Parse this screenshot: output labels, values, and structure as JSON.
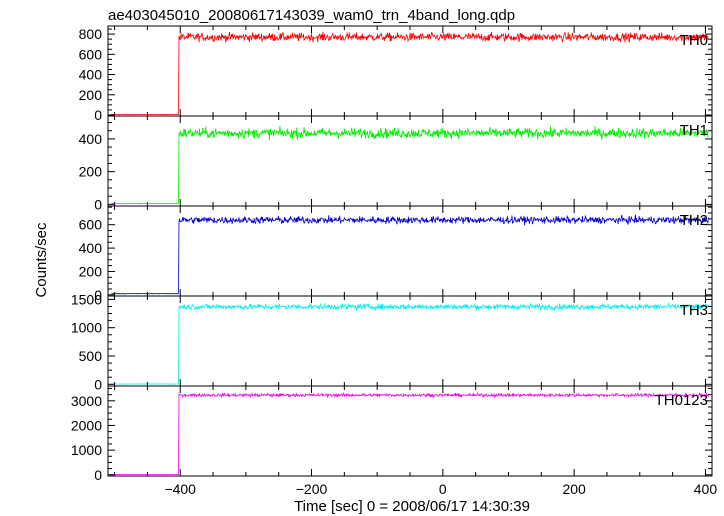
{
  "chart_data": {
    "type": "line",
    "title": "ae403045010_20080617143039_wam0_trn_4band_long.qdp",
    "xlabel": "Time [sec] 0 = 2008/06/17 14:30:39",
    "ylabel": "Counts/sec",
    "xlim": [
      -510,
      410
    ],
    "x_ticks": [
      -400,
      -200,
      0,
      200,
      400
    ],
    "x_tick_labels": [
      "−400",
      "−200",
      "0",
      "200",
      "400"
    ],
    "grid": false,
    "step_time": -402,
    "panels": [
      {
        "name": "TH0",
        "color": "#ff0000",
        "ylim": [
          -10,
          880
        ],
        "yticks": [
          0,
          200,
          400,
          600,
          800
        ],
        "pre_level": 5,
        "post_level": 770,
        "noise": 30
      },
      {
        "name": "TH1",
        "color": "#00ee00",
        "ylim": [
          -10,
          540
        ],
        "yticks": [
          0,
          200,
          400
        ],
        "pre_level": 5,
        "post_level": 435,
        "noise": 22
      },
      {
        "name": "TH2",
        "color": "#0000cc",
        "ylim": [
          -10,
          760
        ],
        "yticks": [
          0,
          200,
          400,
          600
        ],
        "pre_level": 10,
        "post_level": 640,
        "noise": 22
      },
      {
        "name": "TH3",
        "color": "#00eeee",
        "ylim": [
          -30,
          1560
        ],
        "yticks": [
          0,
          500,
          1000,
          1500
        ],
        "pre_level": 5,
        "post_level": 1370,
        "noise": 35
      },
      {
        "name": "TH0123",
        "color": "#ee00ee",
        "ylim": [
          -50,
          3600
        ],
        "yticks": [
          0,
          1000,
          2000,
          3000
        ],
        "pre_level": 10,
        "post_level": 3230,
        "noise": 45
      }
    ]
  }
}
